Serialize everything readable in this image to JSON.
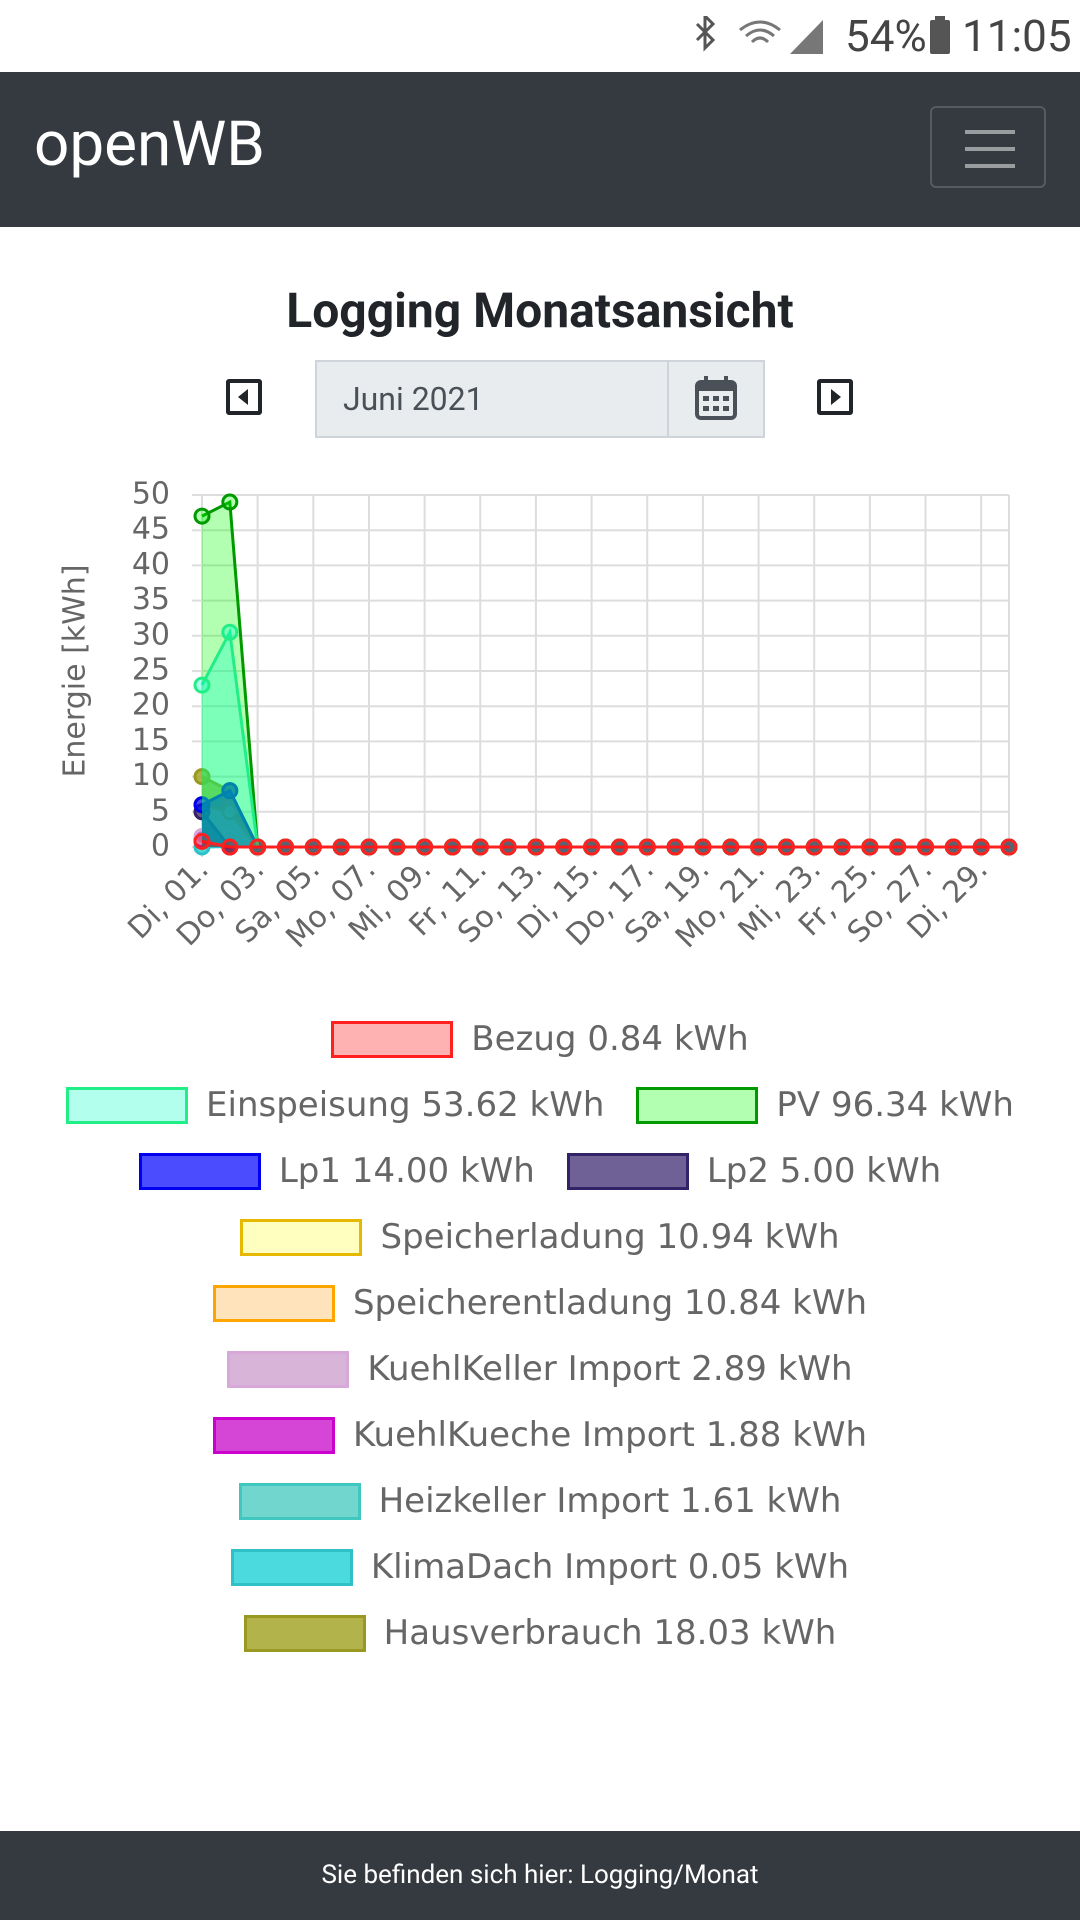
{
  "status_bar": {
    "battery": "54%",
    "time": "11:05"
  },
  "navbar": {
    "brand": "openWB"
  },
  "page": {
    "title": "Logging Monatsansicht",
    "month": "Juni 2021"
  },
  "chart_data": {
    "type": "line",
    "y_label": "Energie [kWh]",
    "categories": [
      "Di, 01.",
      null,
      "Do, 03.",
      null,
      "Sa, 05.",
      null,
      "Mo, 07.",
      null,
      "Mi, 09.",
      null,
      "Fr, 11.",
      null,
      "So, 13.",
      null,
      "Di, 15.",
      null,
      "Do, 17.",
      null,
      "Sa, 19.",
      null,
      "Mo, 21.",
      null,
      "Mi, 23.",
      null,
      "Fr, 25.",
      null,
      "So, 27.",
      null,
      "Di, 29.",
      null
    ],
    "ylim": [
      0,
      50
    ],
    "yticks": [
      0,
      5,
      10,
      15,
      20,
      25,
      30,
      35,
      40,
      45,
      50
    ],
    "grid": true,
    "series": [
      {
        "name": "Bezug 0.84 kWh",
        "color": "#ff2020",
        "fill": "rgba(255,0,0,0.3)",
        "values": [
          0.8,
          0,
          0,
          0,
          0,
          0,
          0,
          0,
          0,
          0,
          0,
          0,
          0,
          0,
          0,
          0,
          0,
          0,
          0,
          0,
          0,
          0,
          0,
          0,
          0,
          0,
          0,
          0,
          0,
          0
        ]
      },
      {
        "name": "Einspeisung 53.62 kWh",
        "color": "#22ee88",
        "fill": "rgba(0,255,200,0.3)",
        "values": [
          23,
          30.5,
          0,
          0,
          0,
          0,
          0,
          0,
          0,
          0,
          0,
          0,
          0,
          0,
          0,
          0,
          0,
          0,
          0,
          0,
          0,
          0,
          0,
          0,
          0,
          0,
          0,
          0,
          0,
          0
        ]
      },
      {
        "name": "PV 96.34 kWh",
        "color": "#009900",
        "fill": "rgba(0,255,0,0.3)",
        "values": [
          47,
          49,
          0,
          0,
          0,
          0,
          0,
          0,
          0,
          0,
          0,
          0,
          0,
          0,
          0,
          0,
          0,
          0,
          0,
          0,
          0,
          0,
          0,
          0,
          0,
          0,
          0,
          0,
          0,
          0
        ]
      },
      {
        "name": "Lp1 14.00 kWh",
        "color": "#0000ee",
        "fill": "rgba(0,0,255,0.7)",
        "values": [
          6,
          8,
          0,
          0,
          0,
          0,
          0,
          0,
          0,
          0,
          0,
          0,
          0,
          0,
          0,
          0,
          0,
          0,
          0,
          0,
          0,
          0,
          0,
          0,
          0,
          0,
          0,
          0,
          0,
          0
        ]
      },
      {
        "name": "Lp2 5.00 kWh",
        "color": "#322369",
        "fill": "rgba(50,30,105,0.7)",
        "values": [
          5,
          0,
          0,
          0,
          0,
          0,
          0,
          0,
          0,
          0,
          0,
          0,
          0,
          0,
          0,
          0,
          0,
          0,
          0,
          0,
          0,
          0,
          0,
          0,
          0,
          0,
          0,
          0,
          0,
          0
        ]
      },
      {
        "name": "Speicherladung 10.94 kWh",
        "color": "#e6b800",
        "fill": "rgba(255,255,150,0.6)",
        "values": [
          6,
          5,
          0,
          0,
          0,
          0,
          0,
          0,
          0,
          0,
          0,
          0,
          0,
          0,
          0,
          0,
          0,
          0,
          0,
          0,
          0,
          0,
          0,
          0,
          0,
          0,
          0,
          0,
          0,
          0
        ]
      },
      {
        "name": "Speicherentladung 10.84 kWh",
        "color": "#ffa500",
        "fill": "rgba(255,200,120,0.5)",
        "values": [
          5,
          5.8,
          0,
          0,
          0,
          0,
          0,
          0,
          0,
          0,
          0,
          0,
          0,
          0,
          0,
          0,
          0,
          0,
          0,
          0,
          0,
          0,
          0,
          0,
          0,
          0,
          0,
          0,
          0,
          0
        ]
      },
      {
        "name": "KuehlKeller Import 2.89 kWh",
        "color": "#d8a8d8",
        "fill": "rgba(200,150,200,0.7)",
        "values": [
          1.5,
          1.4,
          0,
          0,
          0,
          0,
          0,
          0,
          0,
          0,
          0,
          0,
          0,
          0,
          0,
          0,
          0,
          0,
          0,
          0,
          0,
          0,
          0,
          0,
          0,
          0,
          0,
          0,
          0,
          0
        ]
      },
      {
        "name": "KuehlKueche Import 1.88 kWh",
        "color": "#cc00cc",
        "fill": "rgba(210,50,210,0.9)",
        "values": [
          1,
          0.9,
          0,
          0,
          0,
          0,
          0,
          0,
          0,
          0,
          0,
          0,
          0,
          0,
          0,
          0,
          0,
          0,
          0,
          0,
          0,
          0,
          0,
          0,
          0,
          0,
          0,
          0,
          0,
          0
        ]
      },
      {
        "name": "Heizkeller Import 1.61 kWh",
        "color": "#40c8c0",
        "fill": "rgba(64,200,190,0.75)",
        "values": [
          0.8,
          0.8,
          0,
          0,
          0,
          0,
          0,
          0,
          0,
          0,
          0,
          0,
          0,
          0,
          0,
          0,
          0,
          0,
          0,
          0,
          0,
          0,
          0,
          0,
          0,
          0,
          0,
          0,
          0,
          0
        ]
      },
      {
        "name": "KlimaDach Import 0.05 kWh",
        "color": "#30c0c8",
        "fill": "rgba(30,210,215,0.8)",
        "values": [
          0,
          0.05,
          0,
          0,
          0,
          0,
          0,
          0,
          0,
          0,
          0,
          0,
          0,
          0,
          0,
          0,
          0,
          0,
          0,
          0,
          0,
          0,
          0,
          0,
          0,
          0,
          0,
          0,
          0,
          0
        ]
      },
      {
        "name": "Hausverbrauch 18.03 kWh",
        "color": "#999922",
        "fill": "rgba(160,160,30,0.8)",
        "values": [
          10,
          8,
          0,
          0,
          0,
          0,
          0,
          0,
          0,
          0,
          0,
          0,
          0,
          0,
          0,
          0,
          0,
          0,
          0,
          0,
          0,
          0,
          0,
          0,
          0,
          0,
          0,
          0,
          0,
          0
        ]
      }
    ]
  },
  "footer": {
    "breadcrumb": "Sie befinden sich hier: Logging/Monat"
  }
}
